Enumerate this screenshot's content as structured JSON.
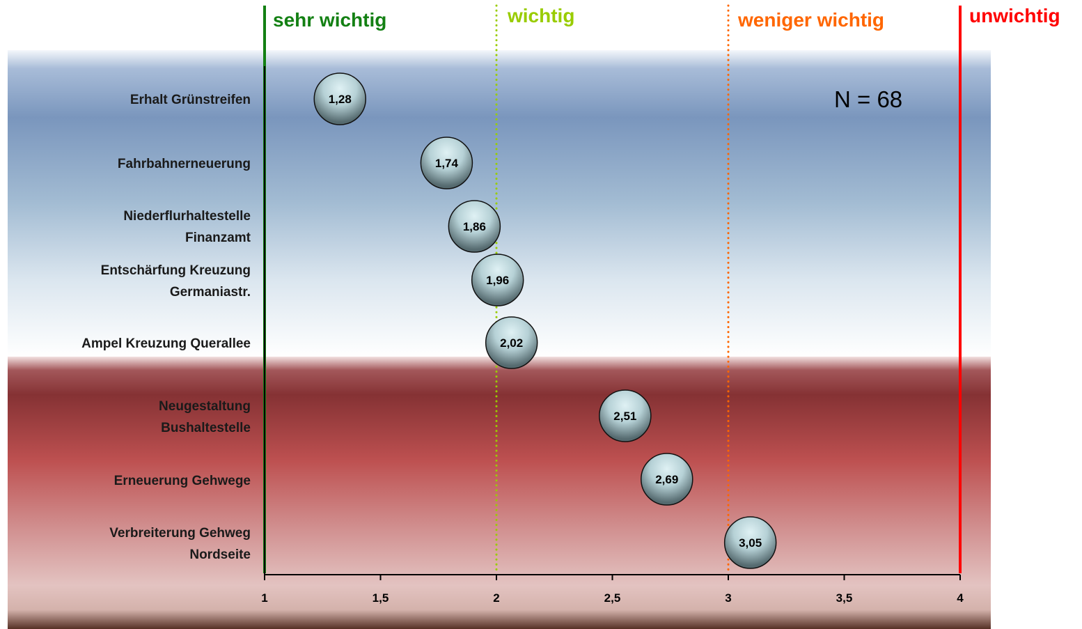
{
  "chart_data": {
    "type": "scatter",
    "annotation": "N = 68",
    "categories": [
      [
        "Erhalt Grünstreifen"
      ],
      [
        "Fahrbahnerneuerung"
      ],
      [
        "Niederflurhaltestelle",
        "Finanzamt"
      ],
      [
        "Entschärfung Kreuzung",
        "Germaniastr."
      ],
      [
        "Ampel Kreuzung Querallee"
      ],
      [
        "Neugestaltung",
        "Bushaltestelle"
      ],
      [
        "Erneuerung Gehwege"
      ],
      [
        "Verbreiterung Gehweg",
        "Nordseite"
      ]
    ],
    "values": [
      1.28,
      1.74,
      1.86,
      1.96,
      2.02,
      2.51,
      2.69,
      3.05
    ],
    "value_labels": [
      "1,28",
      "1,74",
      "1,86",
      "1,96",
      "2,02",
      "2,51",
      "2,69",
      "3,05"
    ],
    "xlim": [
      1,
      4
    ],
    "x_ticks": [
      1,
      1.5,
      2,
      2.5,
      3,
      3.5,
      4
    ],
    "x_tick_labels": [
      "1",
      "1,5",
      "2",
      "2,5",
      "3",
      "3,5",
      "4"
    ],
    "reference_lines": [
      {
        "x": 1,
        "label": "sehr wichtig",
        "color": "#138013",
        "style": "solid"
      },
      {
        "x": 2,
        "label": "wichtig",
        "color": "#99cc00",
        "style": "dotted"
      },
      {
        "x": 3,
        "label": "weniger wichtig",
        "color": "#ff6600",
        "style": "dotted"
      },
      {
        "x": 4,
        "label": "unwichtig",
        "color": "#ff0000",
        "style": "solid"
      }
    ],
    "grid": false,
    "legend": "none"
  }
}
